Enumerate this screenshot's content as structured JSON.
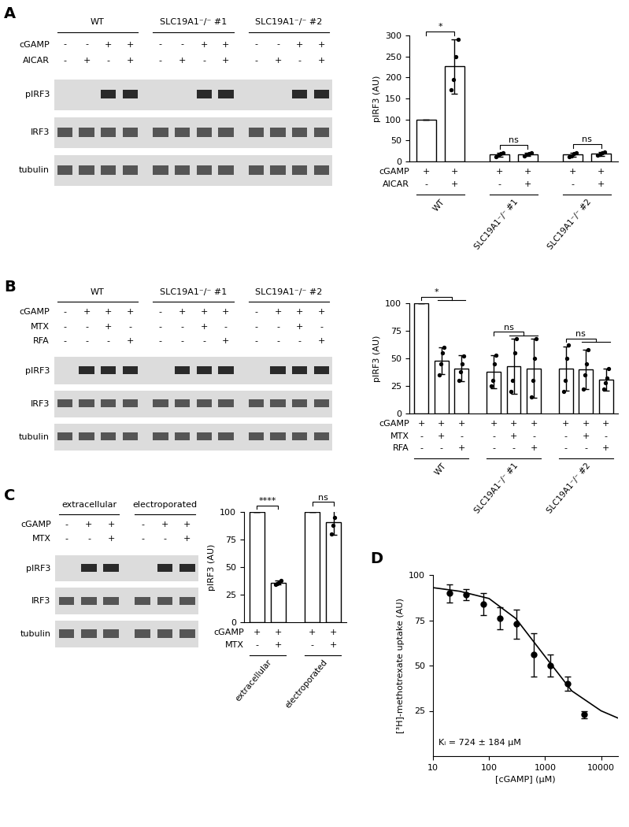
{
  "blots": [
    {
      "panel_label": "A",
      "groups": [
        {
          "name": "WT",
          "size": 4
        },
        {
          "name": "SLC19A1⁻/⁻ #1",
          "size": 4
        },
        {
          "name": "SLC19A1⁻/⁻ #2",
          "size": 4
        }
      ],
      "rows": [
        {
          "name": "cGAMP",
          "signs": [
            "-",
            "-",
            "+",
            "+",
            "-",
            "-",
            "+",
            "+",
            "-",
            "-",
            "+",
            "+"
          ]
        },
        {
          "name": "AICAR",
          "signs": [
            "-",
            "+",
            "-",
            "+",
            "-",
            "+",
            "-",
            "+",
            "-",
            "+",
            "-",
            "+"
          ]
        }
      ],
      "bands": [
        "pIRF3",
        "IRF3",
        "tubulin"
      ]
    },
    {
      "panel_label": "B",
      "groups": [
        {
          "name": "WT",
          "size": 4
        },
        {
          "name": "SLC19A1⁻/⁻ #1",
          "size": 4
        },
        {
          "name": "SLC19A1⁻/⁻ #2",
          "size": 4
        }
      ],
      "rows": [
        {
          "name": "cGAMP",
          "signs": [
            "-",
            "+",
            "+",
            "+",
            "-",
            "+",
            "+",
            "+",
            "-",
            "+",
            "+",
            "+"
          ]
        },
        {
          "name": "MTX",
          "signs": [
            "-",
            "-",
            "+",
            "-",
            "-",
            "-",
            "+",
            "-",
            "-",
            "-",
            "+",
            "-"
          ]
        },
        {
          "name": "RFA",
          "signs": [
            "-",
            "-",
            "-",
            "+",
            "-",
            "-",
            "-",
            "+",
            "-",
            "-",
            "-",
            "+"
          ]
        }
      ],
      "bands": [
        "pIRF3",
        "IRF3",
        "tubulin"
      ]
    },
    {
      "panel_label": "C",
      "groups": [
        {
          "name": "extracellular",
          "size": 3
        },
        {
          "name": "electroporated",
          "size": 3
        }
      ],
      "rows": [
        {
          "name": "cGAMP",
          "signs": [
            "-",
            "+",
            "+",
            "-",
            "+",
            "+"
          ]
        },
        {
          "name": "MTX",
          "signs": [
            "-",
            "-",
            "+",
            "-",
            "-",
            "+"
          ]
        }
      ],
      "bands": [
        "pIRF3",
        "IRF3",
        "tubulin"
      ]
    }
  ],
  "chart_data": [
    {
      "type": "bar",
      "y_label": "pIRF3 (AU)",
      "color": "#ffffff",
      "groups": [
        {
          "name": "WT",
          "size": 2
        },
        {
          "name": "SLC19A1⁻/⁻ #1",
          "size": 2
        },
        {
          "name": "SLC19A1⁻/⁻ #2",
          "size": 2
        }
      ],
      "condition_rows": [
        {
          "name": "cGAMP",
          "signs": [
            "+",
            "+",
            "+",
            "+",
            "+",
            "+"
          ]
        },
        {
          "name": "AICAR",
          "signs": [
            "-",
            "+",
            "-",
            "+",
            "-",
            "+"
          ]
        }
      ],
      "values": [
        100,
        226,
        16,
        17,
        16,
        18
      ],
      "errors": [
        0,
        65,
        5,
        4,
        5,
        5
      ],
      "points": [
        [],
        [
          170,
          195,
          250,
          290
        ],
        [
          12,
          15,
          18,
          20
        ],
        [
          14,
          16,
          18,
          20
        ],
        [
          12,
          14,
          18,
          20
        ],
        [
          15,
          17,
          20,
          22
        ]
      ],
      "ylim": [
        0,
        300
      ],
      "yticks": [
        0,
        50,
        100,
        150,
        200,
        250,
        300
      ],
      "significance": [
        {
          "from": [
            0
          ],
          "to": [
            1
          ],
          "label": "*"
        },
        {
          "from": [
            2
          ],
          "to": [
            3
          ],
          "label": "ns"
        },
        {
          "from": [
            4
          ],
          "to": [
            5
          ],
          "label": "ns"
        }
      ]
    },
    {
      "type": "bar",
      "y_label": "pIRF3 (AU)",
      "color": "#ffffff",
      "groups": [
        {
          "name": "WT",
          "size": 3
        },
        {
          "name": "SLC19A1⁻/⁻ #1",
          "size": 3
        },
        {
          "name": "SLC19A1⁻/⁻ #2",
          "size": 3
        }
      ],
      "condition_rows": [
        {
          "name": "cGAMP",
          "signs": [
            "+",
            "+",
            "+",
            "+",
            "+",
            "+",
            "+",
            "+",
            "+"
          ]
        },
        {
          "name": "MTX",
          "signs": [
            "-",
            "+",
            "-",
            "-",
            "+",
            "-",
            "-",
            "+",
            "-"
          ]
        },
        {
          "name": "RFA",
          "signs": [
            "-",
            "-",
            "+",
            "-",
            "-",
            "+",
            "-",
            "-",
            "+"
          ]
        }
      ],
      "values": [
        100,
        48,
        41,
        38,
        43,
        41,
        41,
        40,
        31
      ],
      "errors": [
        0,
        12,
        12,
        15,
        25,
        27,
        20,
        18,
        10
      ],
      "points": [
        [],
        [
          35,
          45,
          55,
          60
        ],
        [
          30,
          38,
          45,
          52
        ],
        [
          25,
          30,
          45,
          53
        ],
        [
          20,
          30,
          55,
          68
        ],
        [
          15,
          30,
          50,
          68
        ],
        [
          20,
          30,
          50,
          62
        ],
        [
          22,
          35,
          45,
          58
        ],
        [
          22,
          28,
          32,
          41
        ]
      ],
      "ylim": [
        0,
        100
      ],
      "yticks": [
        0,
        25,
        50,
        75,
        100
      ],
      "significance": [
        {
          "from": [
            0
          ],
          "to": [
            1,
            2
          ],
          "label": "*"
        },
        {
          "from": [
            3
          ],
          "to": [
            4,
            5
          ],
          "label": "ns"
        },
        {
          "from": [
            6
          ],
          "to": [
            7,
            8
          ],
          "label": "ns"
        }
      ]
    },
    {
      "type": "bar",
      "y_label": "pIRF3 (AU)",
      "color": "#ffffff",
      "groups": [
        {
          "name": "extracellular",
          "size": 2
        },
        {
          "name": "electroporated",
          "size": 2
        }
      ],
      "condition_rows": [
        {
          "name": "cGAMP",
          "signs": [
            "+",
            "+",
            "+",
            "+"
          ]
        },
        {
          "name": "MTX",
          "signs": [
            "-",
            "+",
            "-",
            "+"
          ]
        }
      ],
      "values": [
        100,
        36,
        100,
        91
      ],
      "errors": [
        0,
        2,
        0,
        12
      ],
      "points": [
        [],
        [
          34,
          35,
          36,
          38
        ],
        [],
        [
          80,
          88,
          95,
          102
        ]
      ],
      "ylim": [
        0,
        100
      ],
      "yticks": [
        0,
        25,
        50,
        75,
        100
      ],
      "significance": [
        {
          "from": [
            0
          ],
          "to": [
            1
          ],
          "label": "****"
        },
        {
          "from": [
            2
          ],
          "to": [
            3
          ],
          "label": "ns"
        }
      ]
    },
    {
      "type": "scatter",
      "panel_label": "D",
      "log": "x",
      "color": "#000000",
      "marker": "o",
      "x_label": "[cGAMP] (µM)",
      "y_label": "[³H]-methotrexate uptake (AU)",
      "x": [
        20,
        39,
        78,
        156,
        312,
        625,
        1250,
        2500,
        5000
      ],
      "values": [
        90,
        89,
        84,
        76,
        73,
        56,
        50,
        40,
        23
      ],
      "errors": [
        5,
        3,
        6,
        6,
        8,
        12,
        6,
        4,
        2
      ],
      "fit": {
        "x": [
          10,
          30,
          100,
          300,
          1000,
          3000,
          10000,
          20000
        ],
        "values": [
          93,
          91,
          87,
          76,
          55,
          36,
          25,
          21
        ]
      },
      "annotation": "Kᵢ = 724 ± 184 µM",
      "xlim": [
        10,
        20000
      ],
      "xticks": [
        10,
        100,
        1000,
        10000
      ],
      "ylim": [
        0,
        100
      ],
      "yticks": [
        25,
        50,
        75,
        100
      ]
    }
  ]
}
